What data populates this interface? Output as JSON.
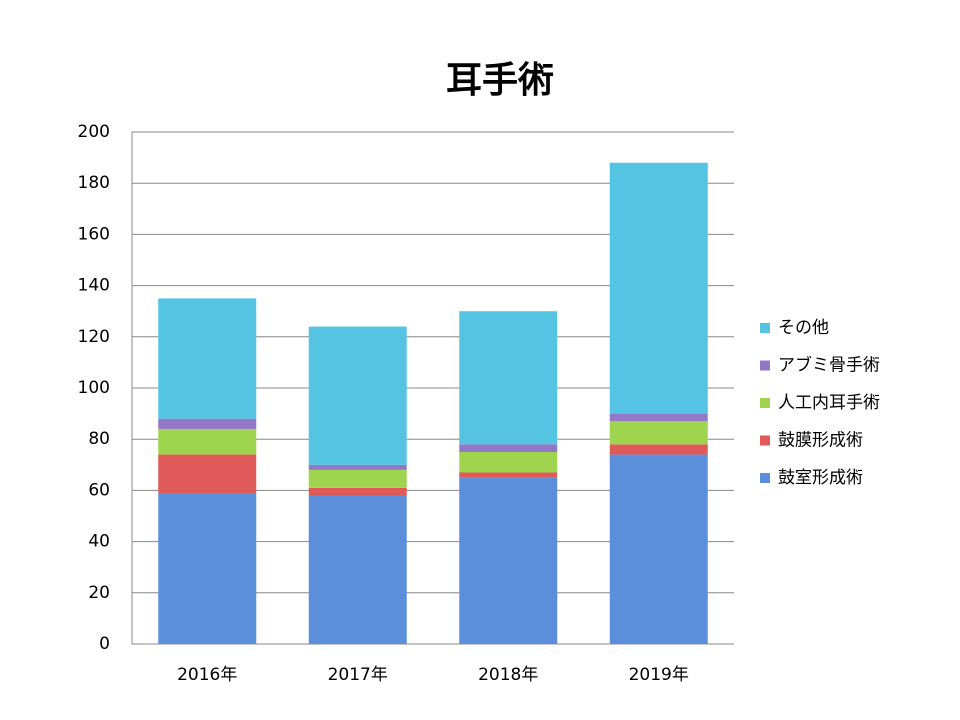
{
  "chart_data": {
    "type": "stacked_bar",
    "title": "耳手術",
    "categories": [
      "2016年",
      "2017年",
      "2018年",
      "2019年"
    ],
    "series": [
      {
        "name": "鼓室形成術",
        "color": "#5b8fdc",
        "values": [
          59,
          58,
          65,
          74
        ]
      },
      {
        "name": "鼓膜形成術",
        "color": "#e05a5a",
        "values": [
          15,
          3,
          2,
          4
        ]
      },
      {
        "name": "人工内耳手術",
        "color": "#9fd44e",
        "values": [
          10,
          7,
          8,
          9
        ]
      },
      {
        "name": "アブミ骨手術",
        "color": "#9478c8",
        "values": [
          4,
          2,
          3,
          3
        ]
      },
      {
        "name": "その他",
        "color": "#55c4e2",
        "values": [
          47,
          54,
          52,
          98
        ]
      }
    ],
    "ylim": [
      0,
      200
    ],
    "yticks": [
      0,
      20,
      40,
      60,
      80,
      100,
      120,
      140,
      160,
      180,
      200
    ],
    "grid": true,
    "legend": "right"
  }
}
